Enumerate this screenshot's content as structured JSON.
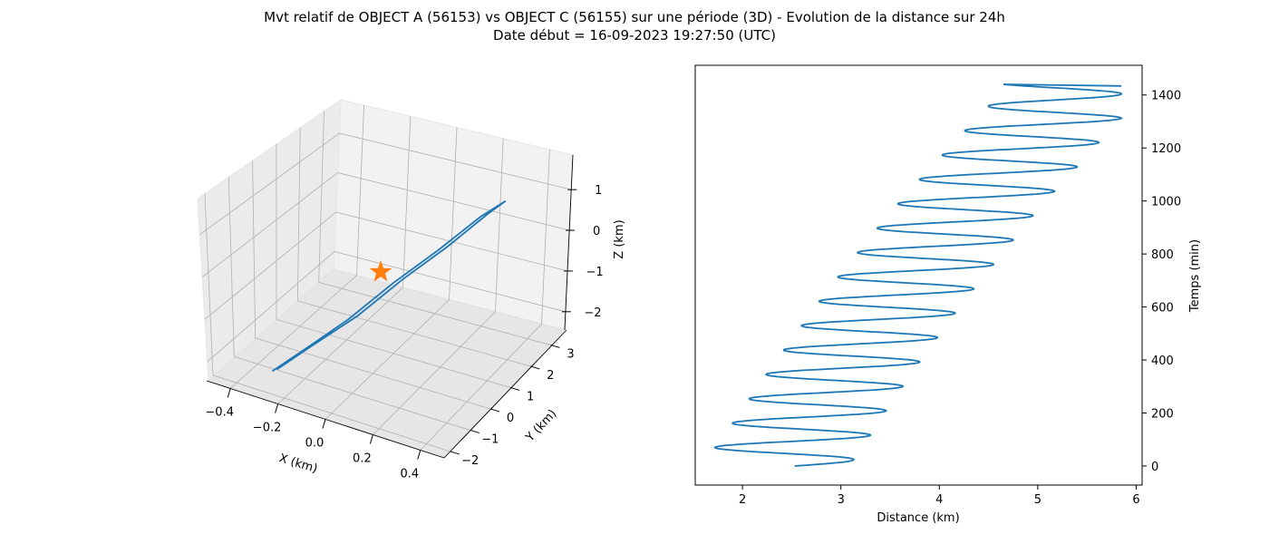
{
  "title_line1": "Mvt relatif de OBJECT A (56153) vs OBJECT C (56155) sur une période (3D) - Evolution de la distance sur 24h",
  "title_line2": "Date début = 16-09-2023 19:27:50 (UTC)",
  "chart_data": [
    {
      "type": "line3d",
      "xlabel": "X (km)",
      "ylabel": "Y (km)",
      "zlabel": "Z (km)",
      "xticks": [
        "−0.4",
        "−0.2",
        "0.0",
        "0.2",
        "0.4"
      ],
      "yticks": [
        "−2",
        "−1",
        "0",
        "1",
        "2",
        "3"
      ],
      "zticks": [
        "−2",
        "−1",
        "0",
        "1"
      ],
      "grid": true,
      "series": [
        {
          "color": "#1f77b4",
          "x": [
            -0.52,
            -0.35,
            -0.15,
            0.05,
            0.25,
            0.42,
            0.52,
            0.42,
            0.25,
            0.05,
            -0.15,
            -0.35,
            -0.52
          ],
          "y": [
            -2.2,
            -1.5,
            -0.7,
            0.3,
            1.3,
            2.3,
            2.9,
            2.6,
            1.7,
            0.7,
            -0.3,
            -1.3,
            -2.0
          ],
          "z": [
            -2.3,
            -1.8,
            -1.2,
            -0.4,
            0.3,
            1.0,
            1.3,
            1.0,
            0.3,
            -0.4,
            -1.2,
            -1.8,
            -2.3
          ]
        }
      ],
      "marker": {
        "shape": "star",
        "color": "#ff7f0e",
        "x": 0.0,
        "y": 0.0,
        "z": 0.0
      }
    },
    {
      "type": "line",
      "xlabel": "Distance (km)",
      "ylabel": "Temps (min)",
      "xlim": [
        1.52,
        6.06
      ],
      "ylim": [
        -72,
        1512
      ],
      "xticks": [
        2,
        3,
        4,
        5,
        6
      ],
      "yticks": [
        0,
        200,
        400,
        600,
        800,
        1000,
        1200,
        1400
      ],
      "y_axis_side": "right",
      "grid": false,
      "series": [
        {
          "color": "#1f77b4",
          "period_min": 92,
          "duration_min": 1440,
          "distance_start_km": 2.53,
          "distance_end_km": 5.85,
          "min_points": [
            [
              1.72,
              70
            ],
            [
              1.9,
              162
            ],
            [
              2.07,
              254
            ],
            [
              2.24,
              346
            ],
            [
              2.42,
              438
            ],
            [
              2.6,
              530
            ],
            [
              2.78,
              622
            ],
            [
              2.97,
              714
            ],
            [
              3.17,
              806
            ],
            [
              3.37,
              898
            ],
            [
              3.58,
              990
            ],
            [
              3.8,
              1082
            ],
            [
              4.03,
              1174
            ],
            [
              4.26,
              1266
            ],
            [
              4.5,
              1358
            ]
          ],
          "max_points": [
            [
              3.13,
              24
            ],
            [
              3.3,
              116
            ],
            [
              3.46,
              208
            ],
            [
              3.63,
              300
            ],
            [
              3.8,
              392
            ],
            [
              3.98,
              484
            ],
            [
              4.16,
              576
            ],
            [
              4.35,
              668
            ],
            [
              4.55,
              760
            ],
            [
              4.75,
              852
            ],
            [
              4.95,
              944
            ],
            [
              5.17,
              1036
            ],
            [
              5.4,
              1128
            ],
            [
              5.62,
              1220
            ],
            [
              5.85,
              1312
            ]
          ]
        }
      ]
    }
  ]
}
